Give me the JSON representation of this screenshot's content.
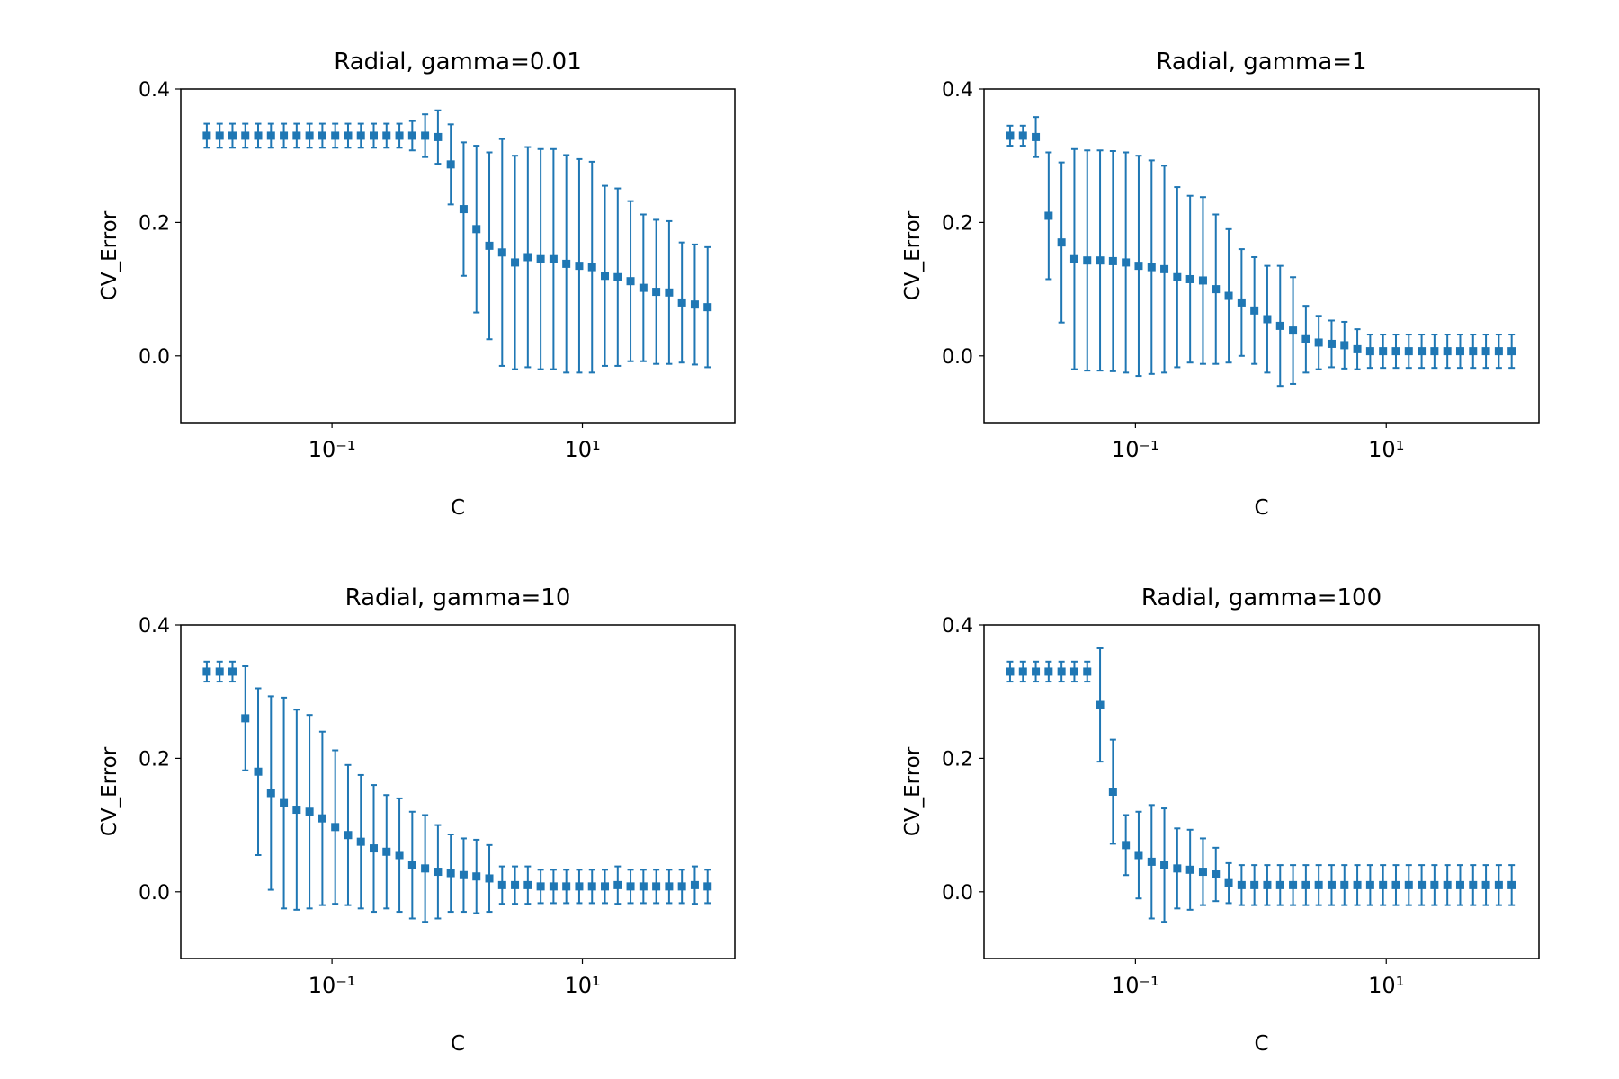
{
  "chart_data": [
    {
      "type": "errorbar",
      "title": "Radial, gamma=0.01",
      "xlabel": "C",
      "ylabel": "CV_Error",
      "color": "#1f77b4",
      "log_x": true,
      "x": [
        0.01,
        0.01267,
        0.01604,
        0.02031,
        0.02572,
        0.03257,
        0.04125,
        0.05223,
        0.06615,
        0.08377,
        0.1061,
        0.1344,
        0.1701,
        0.2154,
        0.2728,
        0.3455,
        0.4375,
        0.5541,
        0.7017,
        0.8886,
        1.125,
        1.425,
        1.805,
        2.286,
        2.894,
        3.665,
        4.642,
        5.878,
        7.444,
        9.427,
        11.94,
        15.12,
        19.15,
        24.24,
        30.7,
        38.88,
        49.24,
        62.36,
        78.97,
        100
      ],
      "values": [
        0.33,
        0.33,
        0.33,
        0.33,
        0.33,
        0.33,
        0.33,
        0.33,
        0.33,
        0.33,
        0.33,
        0.33,
        0.33,
        0.33,
        0.33,
        0.33,
        0.33,
        0.33,
        0.328,
        0.287,
        0.22,
        0.19,
        0.165,
        0.155,
        0.14,
        0.148,
        0.145,
        0.145,
        0.138,
        0.135,
        0.133,
        0.12,
        0.118,
        0.112,
        0.102,
        0.096,
        0.095,
        0.08,
        0.077,
        0.073
      ],
      "errors": [
        0.018,
        0.018,
        0.018,
        0.018,
        0.018,
        0.018,
        0.018,
        0.018,
        0.018,
        0.018,
        0.018,
        0.018,
        0.018,
        0.018,
        0.018,
        0.018,
        0.022,
        0.032,
        0.04,
        0.06,
        0.1,
        0.125,
        0.14,
        0.17,
        0.16,
        0.165,
        0.165,
        0.165,
        0.163,
        0.16,
        0.158,
        0.135,
        0.133,
        0.12,
        0.11,
        0.108,
        0.107,
        0.09,
        0.09,
        0.09
      ],
      "xlim": [
        0.0062,
        165
      ],
      "ylim": [
        -0.1,
        0.4
      ],
      "xticks": [
        {
          "value": 0.1,
          "label": "10⁻¹"
        },
        {
          "value": 10,
          "label": "10¹"
        }
      ],
      "yticks": [
        {
          "value": 0,
          "label": "0.0"
        },
        0.2,
        0.4
      ]
    },
    {
      "type": "errorbar",
      "title": "Radial, gamma=1",
      "xlabel": "C",
      "ylabel": "CV_Error",
      "color": "#1f77b4",
      "log_x": true,
      "x": [
        0.01,
        0.01267,
        0.01604,
        0.02031,
        0.02572,
        0.03257,
        0.04125,
        0.05223,
        0.06615,
        0.08377,
        0.1061,
        0.1344,
        0.1701,
        0.2154,
        0.2728,
        0.3455,
        0.4375,
        0.5541,
        0.7017,
        0.8886,
        1.125,
        1.425,
        1.805,
        2.286,
        2.894,
        3.665,
        4.642,
        5.878,
        7.444,
        9.427,
        11.94,
        15.12,
        19.15,
        24.24,
        30.7,
        38.88,
        49.24,
        62.36,
        78.97,
        100
      ],
      "values": [
        0.33,
        0.33,
        0.328,
        0.21,
        0.17,
        0.145,
        0.143,
        0.143,
        0.142,
        0.14,
        0.135,
        0.133,
        0.13,
        0.118,
        0.115,
        0.113,
        0.1,
        0.09,
        0.08,
        0.068,
        0.055,
        0.045,
        0.038,
        0.025,
        0.02,
        0.018,
        0.016,
        0.01,
        0.007,
        0.007,
        0.007,
        0.007,
        0.007,
        0.007,
        0.007,
        0.007,
        0.007,
        0.007,
        0.007,
        0.007
      ],
      "errors": [
        0.015,
        0.015,
        0.03,
        0.095,
        0.12,
        0.165,
        0.165,
        0.165,
        0.165,
        0.165,
        0.165,
        0.16,
        0.155,
        0.135,
        0.125,
        0.125,
        0.112,
        0.1,
        0.08,
        0.08,
        0.08,
        0.09,
        0.08,
        0.05,
        0.04,
        0.035,
        0.035,
        0.03,
        0.025,
        0.025,
        0.025,
        0.025,
        0.025,
        0.025,
        0.025,
        0.025,
        0.025,
        0.025,
        0.025,
        0.025
      ],
      "xlim": [
        0.0062,
        165
      ],
      "ylim": [
        -0.1,
        0.4
      ],
      "xticks": [
        {
          "value": 0.1,
          "label": "10⁻¹"
        },
        {
          "value": 10,
          "label": "10¹"
        }
      ],
      "yticks": [
        {
          "value": 0,
          "label": "0.0"
        },
        0.2,
        0.4
      ]
    },
    {
      "type": "errorbar",
      "title": "Radial, gamma=10",
      "xlabel": "C",
      "ylabel": "CV_Error",
      "color": "#1f77b4",
      "log_x": true,
      "x": [
        0.01,
        0.01267,
        0.01604,
        0.02031,
        0.02572,
        0.03257,
        0.04125,
        0.05223,
        0.06615,
        0.08377,
        0.1061,
        0.1344,
        0.1701,
        0.2154,
        0.2728,
        0.3455,
        0.4375,
        0.5541,
        0.7017,
        0.8886,
        1.125,
        1.425,
        1.805,
        2.286,
        2.894,
        3.665,
        4.642,
        5.878,
        7.444,
        9.427,
        11.94,
        15.12,
        19.15,
        24.24,
        30.7,
        38.88,
        49.24,
        62.36,
        78.97,
        100
      ],
      "values": [
        0.33,
        0.33,
        0.33,
        0.26,
        0.18,
        0.148,
        0.133,
        0.123,
        0.12,
        0.11,
        0.097,
        0.085,
        0.075,
        0.065,
        0.06,
        0.055,
        0.04,
        0.035,
        0.03,
        0.028,
        0.025,
        0.023,
        0.02,
        0.01,
        0.01,
        0.01,
        0.008,
        0.008,
        0.008,
        0.008,
        0.008,
        0.008,
        0.01,
        0.008,
        0.008,
        0.008,
        0.008,
        0.008,
        0.01,
        0.008
      ],
      "errors": [
        0.015,
        0.015,
        0.015,
        0.078,
        0.125,
        0.145,
        0.158,
        0.15,
        0.145,
        0.13,
        0.115,
        0.105,
        0.1,
        0.095,
        0.085,
        0.085,
        0.08,
        0.08,
        0.07,
        0.058,
        0.055,
        0.055,
        0.05,
        0.028,
        0.028,
        0.028,
        0.025,
        0.025,
        0.025,
        0.025,
        0.025,
        0.025,
        0.028,
        0.025,
        0.025,
        0.025,
        0.025,
        0.025,
        0.028,
        0.025
      ],
      "xlim": [
        0.0062,
        165
      ],
      "ylim": [
        -0.1,
        0.4
      ],
      "xticks": [
        {
          "value": 0.1,
          "label": "10⁻¹"
        },
        {
          "value": 10,
          "label": "10¹"
        }
      ],
      "yticks": [
        {
          "value": 0,
          "label": "0.0"
        },
        0.2,
        0.4
      ]
    },
    {
      "type": "errorbar",
      "title": "Radial, gamma=100",
      "xlabel": "C",
      "ylabel": "CV_Error",
      "color": "#1f77b4",
      "log_x": true,
      "x": [
        0.01,
        0.01267,
        0.01604,
        0.02031,
        0.02572,
        0.03257,
        0.04125,
        0.05223,
        0.06615,
        0.08377,
        0.1061,
        0.1344,
        0.1701,
        0.2154,
        0.2728,
        0.3455,
        0.4375,
        0.5541,
        0.7017,
        0.8886,
        1.125,
        1.425,
        1.805,
        2.286,
        2.894,
        3.665,
        4.642,
        5.878,
        7.444,
        9.427,
        11.94,
        15.12,
        19.15,
        24.24,
        30.7,
        38.88,
        49.24,
        62.36,
        78.97,
        100
      ],
      "values": [
        0.33,
        0.33,
        0.33,
        0.33,
        0.33,
        0.33,
        0.33,
        0.28,
        0.15,
        0.07,
        0.055,
        0.045,
        0.04,
        0.035,
        0.033,
        0.03,
        0.026,
        0.013,
        0.01,
        0.01,
        0.01,
        0.01,
        0.01,
        0.01,
        0.01,
        0.01,
        0.01,
        0.01,
        0.01,
        0.01,
        0.01,
        0.01,
        0.01,
        0.01,
        0.01,
        0.01,
        0.01,
        0.01,
        0.01,
        0.01
      ],
      "errors": [
        0.015,
        0.015,
        0.015,
        0.015,
        0.015,
        0.015,
        0.015,
        0.085,
        0.078,
        0.045,
        0.065,
        0.085,
        0.085,
        0.06,
        0.06,
        0.05,
        0.04,
        0.03,
        0.03,
        0.03,
        0.03,
        0.03,
        0.03,
        0.03,
        0.03,
        0.03,
        0.03,
        0.03,
        0.03,
        0.03,
        0.03,
        0.03,
        0.03,
        0.03,
        0.03,
        0.03,
        0.03,
        0.03,
        0.03,
        0.03
      ],
      "xlim": [
        0.0062,
        165
      ],
      "ylim": [
        -0.1,
        0.4
      ],
      "xticks": [
        {
          "value": 0.1,
          "label": "10⁻¹"
        },
        {
          "value": 10,
          "label": "10¹"
        }
      ],
      "yticks": [
        {
          "value": 0,
          "label": "0.0"
        },
        0.2,
        0.4
      ]
    }
  ]
}
